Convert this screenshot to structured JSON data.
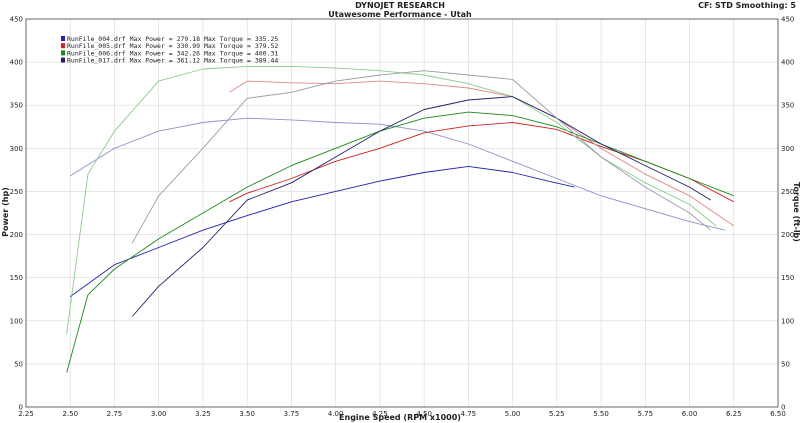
{
  "header": {
    "title": "DYNOJET RESEARCH",
    "subtitle": "Utawesome Performance - Utah",
    "corner": "CF: STD  Smoothing: 5"
  },
  "chart_data": {
    "type": "line",
    "xlabel": "Engine Speed (RPM x1000)",
    "ylabel_left": "Power (hp)",
    "ylabel_right": "Torque (ft-lb)",
    "xlim": [
      2.25,
      6.5
    ],
    "ylim": [
      0,
      450
    ],
    "x_ticks": [
      "2.25",
      "2.50",
      "2.75",
      "3.00",
      "3.25",
      "3.50",
      "3.75",
      "4.00",
      "4.25",
      "4.50",
      "4.75",
      "5.00",
      "5.25",
      "5.50",
      "5.75",
      "6.00",
      "6.25",
      "6.50"
    ],
    "y_ticks": [
      "0",
      "50",
      "100",
      "150",
      "200",
      "250",
      "300",
      "350",
      "400",
      "450"
    ],
    "grid": true,
    "legend": [
      {
        "file": "RunFile_004.drf",
        "max_power_label": "Max Power = 279.18",
        "max_torque_label": "Max Torque = 335.25",
        "color": "#2222aa"
      },
      {
        "file": "RunFile_005.drf",
        "max_power_label": "Max Power = 330.99",
        "max_torque_label": "Max Torque = 379.52",
        "color": "#cc2222"
      },
      {
        "file": "RunFile_006.drf",
        "max_power_label": "Max Power = 342.26",
        "max_torque_label": "Max Torque = 400.31",
        "color": "#1a8a1a"
      },
      {
        "file": "RunFile_017.drf",
        "max_power_label": "Max Power = 361.12",
        "max_torque_label": "Max Torque = 389.44",
        "color": "#222266"
      }
    ],
    "series": [
      {
        "name": "RunFile_004.drf Power",
        "color": "#2222aa",
        "x": [
          2.5,
          2.75,
          3.0,
          3.25,
          3.5,
          3.75,
          4.0,
          4.25,
          4.5,
          4.75,
          5.0,
          5.2,
          5.35
        ],
        "y": [
          128,
          165,
          185,
          205,
          222,
          238,
          250,
          262,
          272,
          279,
          272,
          262,
          255
        ]
      },
      {
        "name": "RunFile_004.drf Torque",
        "color": "#9090cc",
        "x": [
          2.5,
          2.75,
          3.0,
          3.25,
          3.5,
          3.75,
          4.0,
          4.25,
          4.5,
          4.75,
          5.0,
          5.25,
          5.5,
          5.75,
          6.0,
          6.2
        ],
        "y": [
          268,
          300,
          320,
          330,
          335,
          333,
          330,
          328,
          320,
          305,
          285,
          265,
          245,
          230,
          215,
          205
        ]
      },
      {
        "name": "RunFile_005.drf Power",
        "color": "#cc2222",
        "x": [
          3.4,
          3.5,
          3.75,
          4.0,
          4.25,
          4.5,
          4.75,
          5.0,
          5.25,
          5.5,
          5.75,
          6.0,
          6.25
        ],
        "y": [
          238,
          248,
          265,
          285,
          300,
          318,
          326,
          330,
          322,
          302,
          285,
          265,
          238
        ]
      },
      {
        "name": "RunFile_005.drf Torque",
        "color": "#dd8888",
        "x": [
          3.4,
          3.5,
          3.75,
          4.0,
          4.25,
          4.5,
          4.75,
          5.0,
          5.25,
          5.5,
          5.75,
          6.0,
          6.25
        ],
        "y": [
          365,
          378,
          376,
          375,
          378,
          375,
          370,
          360,
          335,
          300,
          270,
          245,
          210
        ]
      },
      {
        "name": "RunFile_006.drf Power",
        "color": "#1a8a1a",
        "x": [
          2.48,
          2.6,
          2.75,
          3.0,
          3.25,
          3.5,
          3.75,
          4.0,
          4.25,
          4.5,
          4.75,
          5.0,
          5.25,
          5.5,
          5.75,
          6.0,
          6.25
        ],
        "y": [
          40,
          130,
          160,
          195,
          225,
          255,
          280,
          300,
          320,
          335,
          342,
          338,
          325,
          305,
          285,
          265,
          245
        ]
      },
      {
        "name": "RunFile_006.drf Torque",
        "color": "#88cc88",
        "x": [
          2.48,
          2.6,
          2.75,
          3.0,
          3.25,
          3.5,
          3.75,
          4.0,
          4.25,
          4.5,
          4.75,
          5.0,
          5.25,
          5.5,
          5.75,
          6.0,
          6.15
        ],
        "y": [
          85,
          270,
          320,
          378,
          392,
          395,
          395,
          393,
          390,
          385,
          375,
          360,
          330,
          290,
          260,
          235,
          210
        ]
      },
      {
        "name": "RunFile_017.drf Power",
        "color": "#222266",
        "x": [
          2.85,
          3.0,
          3.25,
          3.5,
          3.75,
          4.0,
          4.25,
          4.5,
          4.75,
          5.0,
          5.25,
          5.5,
          5.75,
          6.0,
          6.12
        ],
        "y": [
          105,
          140,
          185,
          240,
          260,
          290,
          320,
          345,
          356,
          360,
          335,
          305,
          280,
          255,
          240
        ]
      },
      {
        "name": "RunFile_017.drf Torque",
        "color": "#9a9aaa",
        "x": [
          2.85,
          3.0,
          3.25,
          3.5,
          3.75,
          4.0,
          4.25,
          4.5,
          4.75,
          5.0,
          5.25,
          5.5,
          5.75,
          6.0,
          6.12
        ],
        "y": [
          190,
          245,
          300,
          358,
          365,
          378,
          385,
          390,
          385,
          380,
          335,
          290,
          255,
          225,
          205
        ]
      }
    ]
  }
}
